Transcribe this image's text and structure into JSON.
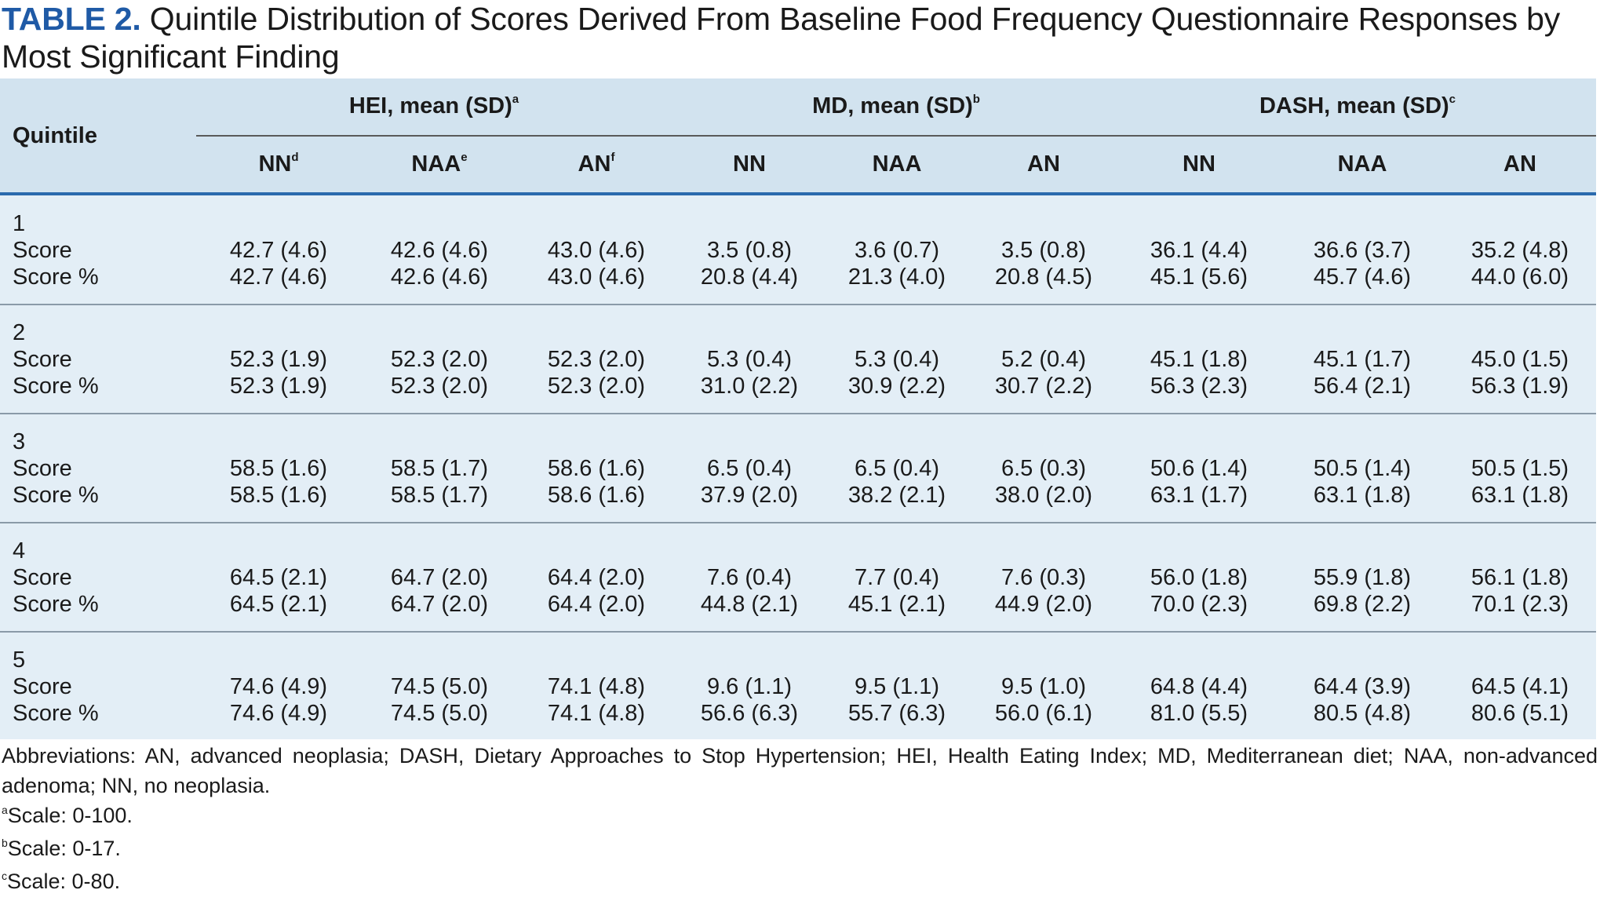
{
  "title": {
    "label": "TABLE 2.",
    "text": " Quintile Distribution of Scores Derived From Baseline Food Frequency Questionnaire Responses by Most Significant Finding"
  },
  "header": {
    "quintile": "Quintile",
    "groups": [
      {
        "label": "HEI, mean (SD)",
        "sup": "a"
      },
      {
        "label": "MD, mean (SD)",
        "sup": "b"
      },
      {
        "label": "DASH, mean (SD)",
        "sup": "c"
      }
    ],
    "columns": [
      {
        "label": "NN",
        "sup": "d"
      },
      {
        "label": "NAA",
        "sup": "e"
      },
      {
        "label": "AN",
        "sup": "f"
      },
      {
        "label": "NN",
        "sup": ""
      },
      {
        "label": "NAA",
        "sup": ""
      },
      {
        "label": "AN",
        "sup": ""
      },
      {
        "label": "NN",
        "sup": ""
      },
      {
        "label": "NAA",
        "sup": ""
      },
      {
        "label": "AN",
        "sup": ""
      }
    ]
  },
  "rows": [
    {
      "quintile": "1",
      "score_label": "Score",
      "pct_label": "Score %",
      "score": [
        "42.7 (4.6)",
        "42.6 (4.6)",
        "43.0 (4.6)",
        "3.5 (0.8)",
        "3.6 (0.7)",
        "3.5 (0.8)",
        "36.1 (4.4)",
        "36.6 (3.7)",
        "35.2 (4.8)"
      ],
      "pct": [
        "42.7 (4.6)",
        "42.6 (4.6)",
        "43.0 (4.6)",
        "20.8 (4.4)",
        "21.3 (4.0)",
        "20.8 (4.5)",
        "45.1 (5.6)",
        "45.7 (4.6)",
        "44.0 (6.0)"
      ]
    },
    {
      "quintile": "2",
      "score_label": "Score",
      "pct_label": "Score %",
      "score": [
        "52.3 (1.9)",
        "52.3 (2.0)",
        "52.3 (2.0)",
        "5.3 (0.4)",
        "5.3 (0.4)",
        "5.2 (0.4)",
        "45.1 (1.8)",
        "45.1 (1.7)",
        "45.0 (1.5)"
      ],
      "pct": [
        "52.3 (1.9)",
        "52.3 (2.0)",
        "52.3 (2.0)",
        "31.0 (2.2)",
        "30.9 (2.2)",
        "30.7 (2.2)",
        "56.3 (2.3)",
        "56.4 (2.1)",
        "56.3 (1.9)"
      ]
    },
    {
      "quintile": "3",
      "score_label": "Score",
      "pct_label": "Score %",
      "score": [
        "58.5 (1.6)",
        "58.5 (1.7)",
        "58.6 (1.6)",
        "6.5 (0.4)",
        "6.5 (0.4)",
        "6.5 (0.3)",
        "50.6 (1.4)",
        "50.5 (1.4)",
        "50.5 (1.5)"
      ],
      "pct": [
        "58.5 (1.6)",
        "58.5 (1.7)",
        "58.6 (1.6)",
        "37.9 (2.0)",
        "38.2 (2.1)",
        "38.0 (2.0)",
        "63.1 (1.7)",
        "63.1 (1.8)",
        "63.1 (1.8)"
      ]
    },
    {
      "quintile": "4",
      "score_label": "Score",
      "pct_label": "Score %",
      "score": [
        "64.5 (2.1)",
        "64.7 (2.0)",
        "64.4 (2.0)",
        "7.6 (0.4)",
        "7.7 (0.4)",
        "7.6 (0.3)",
        "56.0 (1.8)",
        "55.9 (1.8)",
        "56.1 (1.8)"
      ],
      "pct": [
        "64.5 (2.1)",
        "64.7 (2.0)",
        "64.4 (2.0)",
        "44.8 (2.1)",
        "45.1 (2.1)",
        "44.9 (2.0)",
        "70.0 (2.3)",
        "69.8 (2.2)",
        "70.1 (2.3)"
      ]
    },
    {
      "quintile": "5",
      "score_label": "Score",
      "pct_label": "Score %",
      "score": [
        "74.6 (4.9)",
        "74.5 (5.0)",
        "74.1 (4.8)",
        "9.6 (1.1)",
        "9.5 (1.1)",
        "9.5 (1.0)",
        "64.8 (4.4)",
        "64.4 (3.9)",
        "64.5 (4.1)"
      ],
      "pct": [
        "74.6 (4.9)",
        "74.5 (5.0)",
        "74.1 (4.8)",
        "56.6 (6.3)",
        "55.7 (6.3)",
        "56.0 (6.1)",
        "81.0 (5.5)",
        "80.5 (4.8)",
        "80.6 (5.1)"
      ]
    }
  ],
  "notes": {
    "abbreviations": "Abbreviations: AN, advanced neoplasia; DASH, Dietary Approaches to Stop Hypertension; HEI, Health Eating Index; MD, Mediterranean diet; NAA, non-advanced adenoma; NN, no neoplasia.",
    "footnotes": [
      {
        "mark": "a",
        "text": "Scale: 0-100."
      },
      {
        "mark": "b",
        "text": "Scale: 0-17."
      },
      {
        "mark": "c",
        "text": "Scale: 0-80."
      }
    ]
  }
}
